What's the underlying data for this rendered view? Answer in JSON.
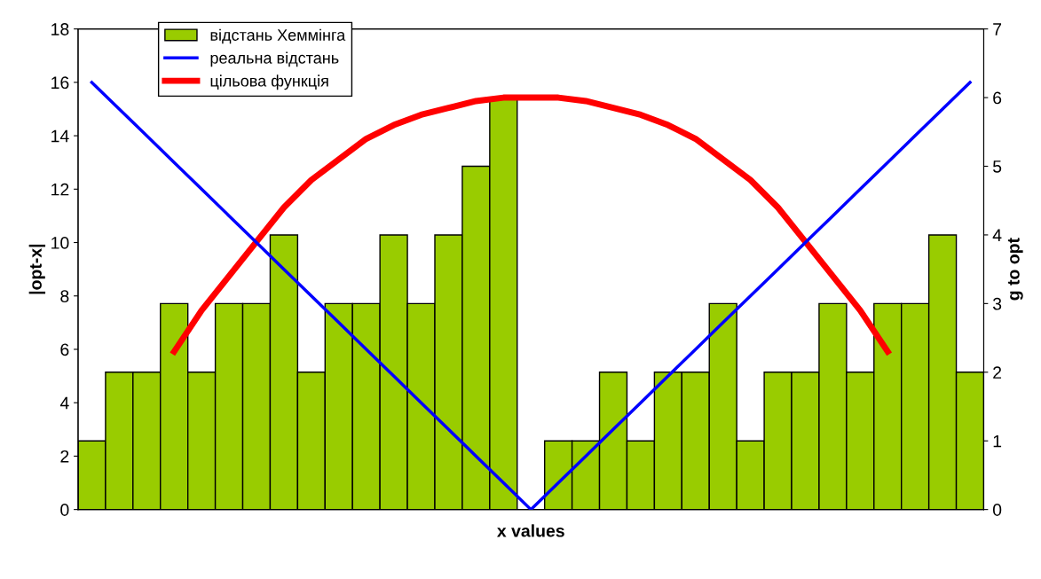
{
  "chart_data": {
    "type": "bar",
    "xlabel": "x values",
    "ylabel": "|opt-x|",
    "y2label": "g to opt",
    "categories": [
      null,
      null,
      null,
      null,
      null,
      null,
      null,
      null,
      null,
      null,
      null,
      null,
      null,
      null,
      null,
      null,
      null,
      null,
      null,
      null,
      null,
      null,
      null,
      null,
      null,
      null,
      null,
      null,
      null,
      null,
      null,
      null,
      null
    ],
    "series": [
      {
        "name": "відстань Хеммінга",
        "axis": "y2",
        "color": "#99cc00",
        "values": [
          1,
          2,
          2,
          3,
          2,
          3,
          3,
          4,
          2,
          3,
          3,
          4,
          3,
          4,
          5,
          6,
          0,
          1,
          1,
          2,
          1,
          2,
          2,
          3,
          1,
          2,
          2,
          3,
          2,
          3,
          3,
          4,
          2
        ]
      },
      {
        "name": "реальна відстань",
        "type": "line",
        "axis": "y",
        "color": "#0000ff",
        "values": [
          16,
          15,
          14,
          13,
          12,
          11,
          10,
          9,
          8,
          7,
          6,
          5,
          4,
          3,
          2,
          1,
          0,
          1,
          2,
          3,
          4,
          5,
          6,
          7,
          8,
          9,
          10,
          11,
          12,
          13,
          14,
          15,
          16
        ]
      },
      {
        "name": "цільова функція",
        "type": "line",
        "axis": "y2",
        "color": "#ff0000",
        "values": [
          null,
          null,
          null,
          2.3,
          2.9,
          3.4,
          3.9,
          4.4,
          4.8,
          5.1,
          5.4,
          5.6,
          5.75,
          5.85,
          5.95,
          6.0,
          6.0,
          6.0,
          5.95,
          5.85,
          5.75,
          5.6,
          5.4,
          5.1,
          4.8,
          4.4,
          3.9,
          3.4,
          2.9,
          2.3,
          null,
          null,
          null
        ]
      }
    ],
    "ylim": [
      0,
      18
    ],
    "yticks": [
      0,
      2,
      4,
      6,
      8,
      10,
      12,
      14,
      16,
      18
    ],
    "y2lim": [
      0,
      7
    ],
    "y2ticks": [
      0,
      1,
      2,
      3,
      4,
      5,
      6,
      7
    ],
    "tick_labels": "y",
    "grid": false,
    "legend": "top left"
  }
}
